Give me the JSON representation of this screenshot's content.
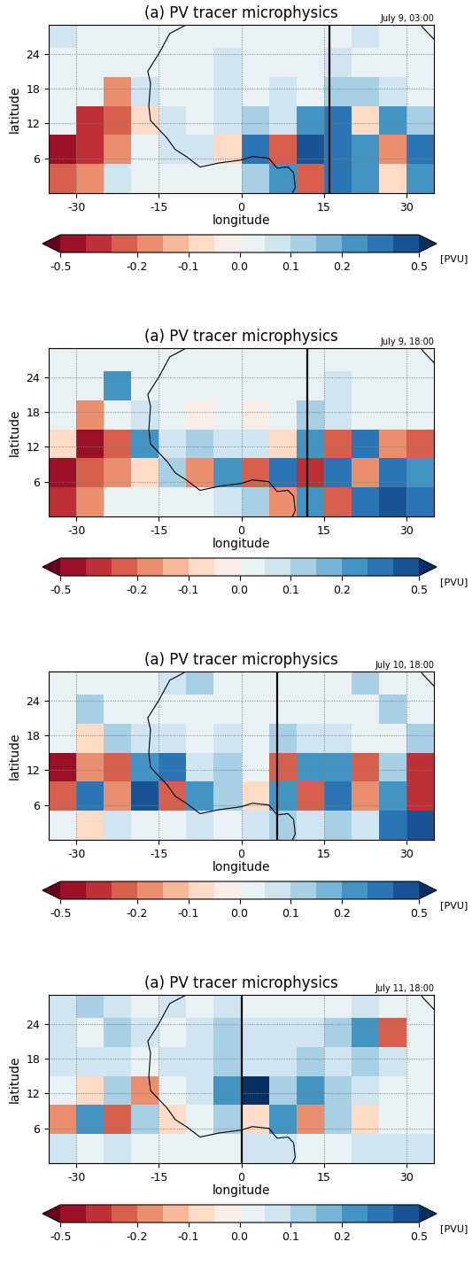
{
  "chart_data": [
    {
      "type": "heatmap",
      "title": "(a) PV tracer microphysics",
      "subtitle": "July 9, 03:00",
      "x_label": "longitude",
      "y_label": "latitude",
      "xlim": [
        -35,
        35
      ],
      "ylim": [
        0,
        29
      ],
      "xticks": [
        -30,
        -15,
        0,
        15,
        30
      ],
      "yticks": [
        6,
        12,
        18,
        24
      ],
      "grid": true,
      "x_edges": [
        -35,
        -30,
        -25,
        -20,
        -15,
        -10,
        -5,
        0,
        5,
        10,
        15,
        20,
        25,
        30,
        35
      ],
      "y_edges": [
        0,
        5,
        10,
        15,
        20,
        25,
        30
      ],
      "cells": [
        [
          -0.3,
          -0.2,
          0.05,
          0.0,
          0.0,
          0.0,
          0.0,
          0.1,
          0.2,
          -0.3,
          0.3,
          0.2,
          -0.1,
          0.2
        ],
        [
          -0.5,
          -0.4,
          -0.2,
          0.0,
          0.05,
          0.05,
          -0.1,
          0.3,
          -0.3,
          0.4,
          0.3,
          0.2,
          -0.2,
          0.3
        ],
        [
          0.0,
          -0.4,
          -0.3,
          -0.1,
          0.05,
          0.0,
          0.05,
          0.1,
          0.05,
          0.2,
          0.3,
          -0.1,
          0.2,
          0.1
        ],
        [
          0.0,
          0.0,
          -0.2,
          0.05,
          0.0,
          0.0,
          0.05,
          0.0,
          0.05,
          0.0,
          0.1,
          0.1,
          0.05,
          0.0
        ],
        [
          0.0,
          0.0,
          0.0,
          0.0,
          0.0,
          0.0,
          0.05,
          0.0,
          0.0,
          0.0,
          0.05,
          0.0,
          0.0,
          0.0
        ],
        [
          0.05,
          0.0,
          0.0,
          0.0,
          0.0,
          0.0,
          0.0,
          0.0,
          0.0,
          0.0,
          0.0,
          0.05,
          0.0,
          0.0
        ]
      ],
      "vertical_line": 16,
      "colorbar": {
        "levels": [
          -0.5,
          -0.4,
          -0.3,
          -0.2,
          -0.15,
          -0.1,
          -0.05,
          0.0,
          0.05,
          0.1,
          0.15,
          0.2,
          0.3,
          0.4,
          0.5
        ],
        "ticks": [
          -0.5,
          -0.2,
          -0.1,
          0.0,
          0.1,
          0.2,
          0.5
        ],
        "label": "[PVU]"
      }
    },
    {
      "type": "heatmap",
      "title": "(a) PV tracer microphysics",
      "subtitle": "July 9, 18:00",
      "x_label": "longitude",
      "y_label": "latitude",
      "xlim": [
        -35,
        35
      ],
      "ylim": [
        0,
        29
      ],
      "xticks": [
        -30,
        -15,
        0,
        15,
        30
      ],
      "yticks": [
        6,
        12,
        18,
        24
      ],
      "grid": true,
      "x_edges": [
        -35,
        -30,
        -25,
        -20,
        -15,
        -10,
        -5,
        0,
        5,
        10,
        15,
        20,
        25,
        30,
        35
      ],
      "y_edges": [
        0,
        5,
        10,
        15,
        20,
        25,
        30
      ],
      "cells": [
        [
          -0.4,
          -0.2,
          0.0,
          0.0,
          0.0,
          0.0,
          0.05,
          0.1,
          -0.2,
          0.2,
          -0.3,
          0.3,
          0.4,
          0.3
        ],
        [
          -0.5,
          -0.3,
          -0.2,
          -0.1,
          0.1,
          -0.2,
          0.2,
          -0.3,
          0.3,
          -0.4,
          0.3,
          -0.2,
          0.3,
          0.2
        ],
        [
          -0.1,
          -0.5,
          -0.3,
          0.2,
          0.05,
          0.1,
          0.05,
          0.05,
          -0.1,
          0.2,
          -0.3,
          0.3,
          -0.2,
          -0.3
        ],
        [
          0.0,
          -0.2,
          0.0,
          0.05,
          0.0,
          -0.05,
          0.0,
          -0.05,
          0.0,
          0.1,
          0.05,
          0.0,
          0.0,
          0.0
        ],
        [
          0.0,
          0.0,
          0.2,
          0.0,
          0.0,
          0.0,
          0.0,
          0.0,
          0.0,
          0.0,
          0.05,
          0.0,
          0.0,
          0.0
        ],
        [
          0.0,
          0.0,
          0.0,
          0.0,
          0.0,
          0.0,
          0.0,
          0.0,
          0.0,
          0.0,
          0.0,
          0.0,
          0.0,
          0.0
        ]
      ],
      "vertical_line": 12,
      "colorbar": {
        "levels": [
          -0.5,
          -0.4,
          -0.3,
          -0.2,
          -0.15,
          -0.1,
          -0.05,
          0.0,
          0.05,
          0.1,
          0.15,
          0.2,
          0.3,
          0.4,
          0.5
        ],
        "ticks": [
          -0.5,
          -0.2,
          -0.1,
          0.0,
          0.1,
          0.2,
          0.5
        ],
        "label": "[PVU]"
      }
    },
    {
      "type": "heatmap",
      "title": "(a) PV tracer microphysics",
      "subtitle": "July 10, 18:00",
      "x_label": "longitude",
      "y_label": "latitude",
      "xlim": [
        -35,
        35
      ],
      "ylim": [
        0,
        29
      ],
      "xticks": [
        -30,
        -15,
        0,
        15,
        30
      ],
      "yticks": [
        6,
        12,
        18,
        24
      ],
      "grid": true,
      "x_edges": [
        -35,
        -30,
        -25,
        -20,
        -15,
        -10,
        -5,
        0,
        5,
        10,
        15,
        20,
        25,
        30,
        35
      ],
      "y_edges": [
        0,
        5,
        10,
        15,
        20,
        25,
        30
      ],
      "cells": [
        [
          0.0,
          -0.1,
          0.05,
          0.0,
          0.0,
          0.05,
          0.0,
          0.05,
          0.1,
          0.05,
          0.1,
          0.05,
          0.3,
          0.4
        ],
        [
          -0.3,
          0.3,
          -0.2,
          0.4,
          -0.3,
          0.2,
          0.1,
          -0.1,
          0.2,
          -0.3,
          0.3,
          -0.2,
          0.2,
          -0.4
        ],
        [
          -0.5,
          -0.2,
          -0.3,
          0.2,
          0.3,
          0.05,
          0.1,
          0.0,
          -0.3,
          0.2,
          0.2,
          -0.3,
          0.1,
          -0.4
        ],
        [
          0.0,
          -0.1,
          0.1,
          0.05,
          0.05,
          0.0,
          0.05,
          0.0,
          0.1,
          0.05,
          0.05,
          0.0,
          0.0,
          0.1
        ],
        [
          0.0,
          0.1,
          0.0,
          0.0,
          0.0,
          0.0,
          0.0,
          0.0,
          0.0,
          0.0,
          0.0,
          0.0,
          0.1,
          0.0
        ],
        [
          0.0,
          0.0,
          0.0,
          0.0,
          0.05,
          0.1,
          0.0,
          0.0,
          0.0,
          0.0,
          0.0,
          0.1,
          0.0,
          0.0
        ]
      ],
      "vertical_line": 6.5,
      "colorbar": {
        "levels": [
          -0.5,
          -0.4,
          -0.3,
          -0.2,
          -0.15,
          -0.1,
          -0.05,
          0.0,
          0.05,
          0.1,
          0.15,
          0.2,
          0.3,
          0.4,
          0.5
        ],
        "ticks": [
          -0.5,
          -0.2,
          -0.1,
          0.0,
          0.1,
          0.2,
          0.5
        ],
        "label": "[PVU]"
      }
    },
    {
      "type": "heatmap",
      "title": "(a) PV tracer microphysics",
      "subtitle": "July 11, 18:00",
      "x_label": "longitude",
      "y_label": "latitude",
      "xlim": [
        -35,
        35
      ],
      "ylim": [
        0,
        29
      ],
      "xticks": [
        -30,
        -15,
        0,
        15,
        30
      ],
      "yticks": [
        6,
        12,
        18,
        24
      ],
      "grid": true,
      "x_edges": [
        -35,
        -30,
        -25,
        -20,
        -15,
        -10,
        -5,
        0,
        5,
        10,
        15,
        20,
        25,
        30,
        35
      ],
      "y_edges": [
        0,
        5,
        10,
        15,
        20,
        25,
        30
      ],
      "cells": [
        [
          0.05,
          0.0,
          0.05,
          0.0,
          0.0,
          0.0,
          0.0,
          0.05,
          0.05,
          0.0,
          0.0,
          0.05,
          0.05,
          0.05
        ],
        [
          -0.2,
          0.2,
          -0.3,
          0.1,
          -0.1,
          0.0,
          0.1,
          -0.1,
          0.2,
          -0.2,
          0.1,
          -0.1,
          0.0,
          0.0
        ],
        [
          0.0,
          -0.1,
          0.1,
          -0.2,
          0.0,
          0.05,
          0.2,
          0.5,
          0.1,
          0.2,
          0.1,
          0.05,
          0.0,
          0.0
        ],
        [
          0.05,
          0.05,
          0.05,
          0.0,
          0.05,
          0.05,
          0.1,
          0.05,
          0.05,
          0.1,
          0.05,
          0.1,
          0.05,
          0.0
        ],
        [
          0.05,
          0.0,
          0.1,
          0.05,
          0.0,
          0.05,
          0.1,
          0.05,
          0.05,
          0.05,
          0.1,
          0.2,
          -0.3,
          0.0
        ],
        [
          0.05,
          0.1,
          0.05,
          0.0,
          0.05,
          0.0,
          0.05,
          0.0,
          0.0,
          0.0,
          0.0,
          0.05,
          0.0,
          0.0
        ]
      ],
      "vertical_line": 0,
      "colorbar": {
        "levels": [
          -0.5,
          -0.4,
          -0.3,
          -0.2,
          -0.15,
          -0.1,
          -0.05,
          0.0,
          0.05,
          0.1,
          0.15,
          0.2,
          0.3,
          0.4,
          0.5
        ],
        "ticks": [
          -0.5,
          -0.2,
          -0.1,
          0.0,
          0.1,
          0.2,
          0.5
        ],
        "label": "[PVU]"
      }
    }
  ],
  "coastlines": [
    {
      "lon": [
        -9,
        -10,
        -13,
        -15,
        -17,
        -16.5,
        -16.8,
        -16.5,
        -15,
        -13.5,
        -12,
        -10,
        -7.5,
        -4,
        0,
        2,
        5,
        6.5,
        8.5,
        9.5,
        9.8,
        9.3
      ],
      "lat": [
        30,
        29,
        27.5,
        24,
        21,
        19,
        15,
        12.5,
        11,
        9.5,
        7.5,
        6.3,
        4.5,
        5.2,
        5.7,
        6.3,
        6,
        4.3,
        4.5,
        3.5,
        1,
        0
      ]
    },
    {
      "lon": [
        32,
        33,
        34.5,
        35
      ],
      "lat": [
        30,
        28.5,
        27,
        26.5
      ]
    }
  ]
}
